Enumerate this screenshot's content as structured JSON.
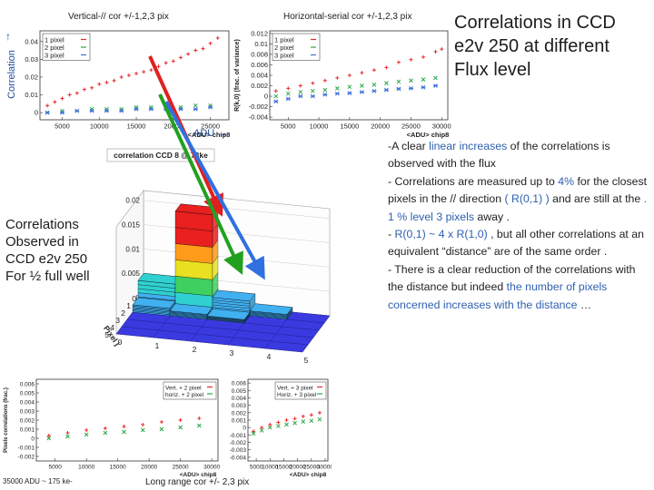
{
  "slide": {
    "title": "Correlations  in CCD e2v 250 at different Flux level",
    "left_note": "Correlations Observed in CCD e2v 250 For ½ full well",
    "correlation_axis_label": "Correlation",
    "adu_axis_label": "ADU",
    "caption_vertical": "Vertical-// cor +/-1,2,3 pix",
    "caption_horizontal": "Horizontal-serial cor +/-1,2,3 pix",
    "caption_flux": "35000 ADU ~ 175 ke-",
    "caption_long_range": "Long range  cor +/- 2,3 pix",
    "bullets": [
      {
        "parts": [
          {
            "t": "-A clear "
          },
          {
            "t": "linear increases",
            "blue": true
          },
          {
            "t": " of the correlations is observed with the flux"
          }
        ]
      },
      {
        "parts": [
          {
            "t": "- Correlations are measured up to "
          },
          {
            "t": "4%",
            "blue": true
          },
          {
            "t": " for the closest pixels in the // direction "
          },
          {
            "t": "( R(0,1) )",
            "blue": true
          },
          {
            "t": " and are  still at the "
          },
          {
            "t": ". 1 % level 3 pixels",
            "blue": true
          },
          {
            "t": " away ."
          }
        ]
      },
      {
        "parts": [
          {
            "t": "-  "
          },
          {
            "t": "R(0,1) ~ 4 x R(1,0)",
            "blue": true
          },
          {
            "t": " , but all other correlations at an equivalent “distance” are of the same order ."
          }
        ]
      },
      {
        "parts": [
          {
            "t": "- There is a clear reduction of the correlations with the distance but indeed "
          },
          {
            "t": "the number of pixels concerned increases with the distance",
            "blue": true
          },
          {
            "t": " …"
          }
        ]
      }
    ]
  },
  "colors": {
    "red": "#e8282a",
    "green": "#2aa84a",
    "blue": "#3a6fd8",
    "text_blue": "#2d5fae",
    "arrow_red": "#e02020",
    "arrow_green": "#22a020",
    "arrow_blue": "#3070e0"
  },
  "chart_data": [
    {
      "type": "scatter",
      "xlabel": "<ADU> chip8",
      "ylabel": "",
      "xticks": [
        "5000",
        "10000",
        "15000",
        "20000",
        "25000"
      ],
      "yticks": [
        "0",
        "0.01",
        "0.02",
        "0.03",
        "0.04"
      ],
      "xlim": [
        2000,
        27500
      ],
      "ylim": [
        -0.004,
        0.046
      ],
      "legend": [
        "1 pixel",
        "2 pixel",
        "3 pixel"
      ],
      "series": [
        {
          "name": "1 pixel",
          "color": "red",
          "x": [
            3000,
            4000,
            5000,
            6000,
            7000,
            8000,
            9000,
            10000,
            11000,
            12000,
            13000,
            14000,
            15000,
            16000,
            17000,
            18000,
            19000,
            20000,
            21000,
            22000,
            23000,
            24000,
            25000,
            26000
          ],
          "values": [
            0.004,
            0.006,
            0.008,
            0.01,
            0.011,
            0.013,
            0.014,
            0.016,
            0.017,
            0.018,
            0.02,
            0.021,
            0.022,
            0.023,
            0.024,
            0.026,
            0.028,
            0.029,
            0.031,
            0.033,
            0.035,
            0.036,
            0.039,
            0.042
          ]
        },
        {
          "name": "2 pixel",
          "color": "green",
          "x": [
            3000,
            5000,
            7000,
            9000,
            11000,
            13000,
            15000,
            17000,
            19000,
            21000,
            23000,
            25000
          ],
          "values": [
            0.0,
            0.001,
            0.001,
            0.002,
            0.002,
            0.002,
            0.003,
            0.003,
            0.003,
            0.003,
            0.004,
            0.004
          ]
        },
        {
          "name": "3 pixel",
          "color": "blue",
          "x": [
            3000,
            5000,
            7000,
            9000,
            11000,
            13000,
            15000,
            17000,
            19000,
            21000,
            23000,
            25000
          ],
          "values": [
            0.0,
            0.0,
            0.001,
            0.001,
            0.001,
            0.001,
            0.002,
            0.002,
            0.002,
            0.002,
            0.002,
            0.003
          ]
        }
      ]
    },
    {
      "type": "scatter",
      "xlabel": "<ADU> chip8",
      "ylabel": "R(k,0) (frac. of variance)",
      "xticks": [
        "5000",
        "10000",
        "15000",
        "20000",
        "25000",
        "30000"
      ],
      "yticks": [
        "-0.004",
        "-0.002",
        "0",
        "0.002",
        "0.004",
        "0.006",
        "0.008",
        "0.01",
        "0.012"
      ],
      "xlim": [
        2000,
        31000
      ],
      "ylim": [
        -0.0045,
        0.0125
      ],
      "legend": [
        "1 pixel",
        "2 pixel",
        "3 pixel"
      ],
      "series": [
        {
          "name": "1 pixel",
          "color": "red",
          "x": [
            3000,
            5000,
            7000,
            9000,
            11000,
            13000,
            15000,
            17000,
            19000,
            21000,
            23000,
            25000,
            27000,
            29000,
            30000
          ],
          "values": [
            0.001,
            0.0015,
            0.002,
            0.0025,
            0.003,
            0.0035,
            0.004,
            0.0045,
            0.005,
            0.0055,
            0.0065,
            0.007,
            0.0075,
            0.0085,
            0.009
          ]
        },
        {
          "name": "2 pixel",
          "color": "green",
          "x": [
            3000,
            5000,
            7000,
            9000,
            11000,
            13000,
            15000,
            17000,
            19000,
            21000,
            23000,
            25000,
            27000,
            29000
          ],
          "values": [
            0.0,
            0.0005,
            0.0008,
            0.001,
            0.0012,
            0.0015,
            0.0018,
            0.002,
            0.0022,
            0.0025,
            0.0028,
            0.003,
            0.0032,
            0.0035
          ]
        },
        {
          "name": "3 pixel",
          "color": "blue",
          "x": [
            3000,
            5000,
            7000,
            9000,
            11000,
            13000,
            15000,
            17000,
            19000,
            21000,
            23000,
            25000,
            27000,
            29000
          ],
          "values": [
            -0.001,
            -0.0005,
            0.0,
            0.0,
            0.0003,
            0.0005,
            0.0006,
            0.0008,
            0.001,
            0.0012,
            0.0014,
            0.0015,
            0.0017,
            0.002
          ]
        }
      ]
    },
    {
      "type": "bar3d",
      "title": "correlation CCD 8 @ 73ke",
      "xlabel": "pixel i",
      "ylabel": "Pixel j",
      "zticks": [
        "0",
        "0.005",
        "0.01",
        "0.015",
        "0.02"
      ],
      "xticks": [
        "0",
        "1",
        "2",
        "3",
        "4",
        "5"
      ],
      "yticks": [
        "0",
        "1",
        "2",
        "3",
        "4",
        "5"
      ],
      "zlim": [
        0,
        0.022
      ],
      "cells": [
        {
          "i": 0,
          "j": 0,
          "value": 0.005
        },
        {
          "i": 1,
          "j": 0,
          "value": 0.02
        },
        {
          "i": 2,
          "j": 0,
          "value": 0.003
        },
        {
          "i": 3,
          "j": 0,
          "value": 0.001
        },
        {
          "i": 0,
          "j": 1,
          "value": 0.0015
        },
        {
          "i": 1,
          "j": 1,
          "value": 0.001
        },
        {
          "i": 2,
          "j": 1,
          "value": 0.0007
        }
      ]
    },
    {
      "type": "scatter",
      "xlabel": "<ADU> chip8",
      "ylabel": "Pixels correlations (frac.)",
      "xticks": [
        "5000",
        "10000",
        "15000",
        "20000",
        "25000",
        "30000"
      ],
      "yticks": [
        "-0.002",
        "-0.001",
        "0",
        "0.001",
        "0.002",
        "0.003",
        "0.004",
        "0.005",
        "0.006"
      ],
      "xlim": [
        2000,
        31000
      ],
      "ylim": [
        -0.0025,
        0.0065
      ],
      "legend": [
        "Vert. + 2 pixel",
        "horiz. + 2 pixel"
      ],
      "series": [
        {
          "name": "Vert. + 2 pixel",
          "color": "red",
          "x": [
            4000,
            7000,
            10000,
            13000,
            16000,
            19000,
            22000,
            25000,
            28000
          ],
          "values": [
            0.0003,
            0.0006,
            0.0009,
            0.0011,
            0.0013,
            0.0015,
            0.0018,
            0.002,
            0.0022
          ]
        },
        {
          "name": "horiz. + 2 pixel",
          "color": "green",
          "x": [
            4000,
            7000,
            10000,
            13000,
            16000,
            19000,
            22000,
            25000,
            28000
          ],
          "values": [
            0.0,
            0.0002,
            0.0004,
            0.0006,
            0.0007,
            0.0009,
            0.001,
            0.0012,
            0.0014
          ]
        }
      ]
    },
    {
      "type": "scatter",
      "xlabel": "<ADU> chip8",
      "ylabel": "Pixels correlations (frac.)",
      "xticks": [
        "5000",
        "10000",
        "15000",
        "20000",
        "25000",
        "30000"
      ],
      "yticks": [
        "-0.004",
        "-0.003",
        "-0.002",
        "-0.001",
        "0",
        "0.001",
        "0.002",
        "0.003",
        "0.004",
        "0.005",
        "0.006"
      ],
      "xlim": [
        2000,
        31000
      ],
      "ylim": [
        -0.0045,
        0.0065
      ],
      "legend": [
        "Vert. + 3 pixel",
        "Horiz. + 3 pixel"
      ],
      "series": [
        {
          "name": "Vert. + 3 pixel",
          "color": "red",
          "x": [
            4000,
            7000,
            10000,
            13000,
            16000,
            19000,
            22000,
            25000,
            28000
          ],
          "values": [
            -0.0005,
            0.0,
            0.0004,
            0.0007,
            0.001,
            0.0012,
            0.0015,
            0.0017,
            0.002
          ]
        },
        {
          "name": "Horiz. + 3 pixel",
          "color": "green",
          "x": [
            4000,
            7000,
            10000,
            13000,
            16000,
            19000,
            22000,
            25000,
            28000
          ],
          "values": [
            -0.0008,
            -0.0004,
            0.0,
            0.0002,
            0.0004,
            0.0006,
            0.0008,
            0.0009,
            0.0011
          ]
        }
      ]
    }
  ]
}
